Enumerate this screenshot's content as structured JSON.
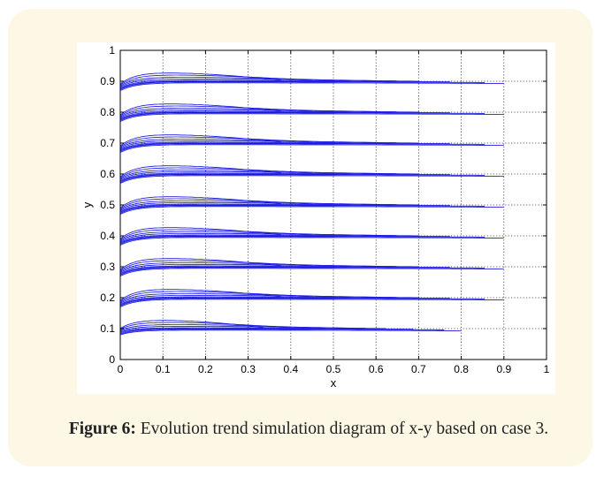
{
  "caption": {
    "label": "Figure 6:",
    "text": "Evolution trend simulation diagram of x-y based on case 3."
  },
  "chart_data": {
    "type": "line",
    "title": "",
    "xlabel": "x",
    "ylabel": "y",
    "xlim": [
      0,
      1
    ],
    "ylim": [
      0,
      1
    ],
    "grid": true,
    "grid_style": "dotted",
    "line_color": "#1a1ae0",
    "xticks": [
      "0",
      "0.1",
      "0.2",
      "0.3",
      "0.4",
      "0.5",
      "0.6",
      "0.7",
      "0.8",
      "0.9",
      "1"
    ],
    "yticks": [
      "0",
      "0.1",
      "0.2",
      "0.3",
      "0.4",
      "0.5",
      "0.6",
      "0.7",
      "0.8",
      "0.9",
      "1"
    ],
    "trajectory_groups": [
      {
        "y_start": 0.08,
        "y_steady": 0.1,
        "x_end": 0.8
      },
      {
        "y_start": 0.17,
        "y_steady": 0.2,
        "x_end": 0.9
      },
      {
        "y_start": 0.27,
        "y_steady": 0.3,
        "x_end": 0.9
      },
      {
        "y_start": 0.37,
        "y_steady": 0.4,
        "x_end": 0.9
      },
      {
        "y_start": 0.47,
        "y_steady": 0.5,
        "x_end": 0.9
      },
      {
        "y_start": 0.57,
        "y_steady": 0.6,
        "x_end": 0.9
      },
      {
        "y_start": 0.67,
        "y_steady": 0.7,
        "x_end": 0.9
      },
      {
        "y_start": 0.77,
        "y_steady": 0.8,
        "x_end": 0.9
      },
      {
        "y_start": 0.87,
        "y_steady": 0.9,
        "x_end": 0.9
      }
    ]
  }
}
